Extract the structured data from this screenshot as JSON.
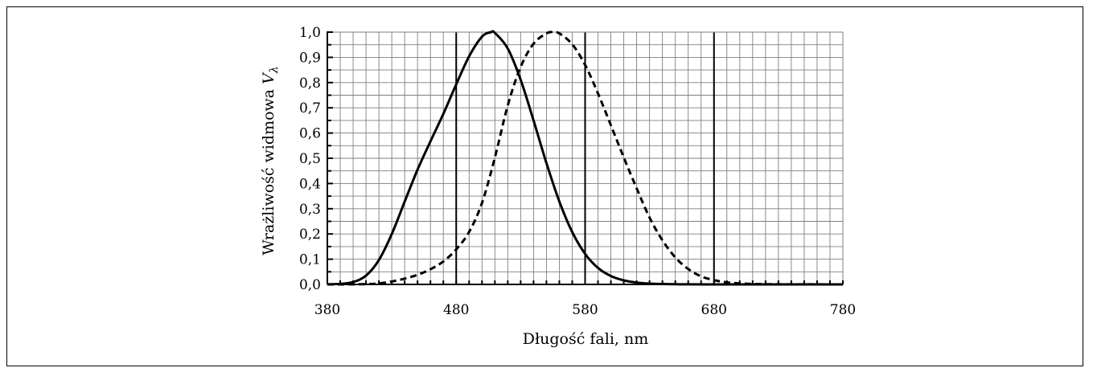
{
  "chart_data": {
    "type": "line",
    "xlabel": "Długość fali, nm",
    "ylabel_main": "Wrażliwość widmowa ",
    "ylabel_var": "V",
    "ylabel_sub": "λ",
    "xlim": [
      380,
      780
    ],
    "ylim": [
      0,
      1
    ],
    "x_ticks": [
      "380",
      "480",
      "580",
      "680",
      "780"
    ],
    "y_ticks": [
      "0,0",
      "0,1",
      "0,2",
      "0,3",
      "0,4",
      "0,5",
      "0,6",
      "0,7",
      "0,8",
      "0,9",
      "1,0"
    ],
    "minor_grid_x_step": 10,
    "minor_grid_y_step": 0.05,
    "major_vlines": [
      480,
      580,
      680
    ],
    "grid": true,
    "legend": "none",
    "series": [
      {
        "style": "solid",
        "x": [
          380,
          390,
          400,
          410,
          420,
          430,
          440,
          450,
          460,
          470,
          480,
          490,
          500,
          507,
          510,
          520,
          530,
          540,
          550,
          560,
          570,
          580,
          590,
          600,
          610,
          620,
          630,
          640,
          650,
          660,
          680,
          700,
          780
        ],
        "y": [
          0.0006,
          0.0022,
          0.0093,
          0.0348,
          0.0966,
          0.1998,
          0.3281,
          0.455,
          0.567,
          0.676,
          0.793,
          0.904,
          0.982,
          1.0,
          0.997,
          0.935,
          0.811,
          0.65,
          0.481,
          0.3288,
          0.2076,
          0.1212,
          0.0655,
          0.0332,
          0.0159,
          0.0074,
          0.0033,
          0.0015,
          0.0007,
          0.0003,
          0.0001,
          0.0,
          0.0
        ]
      },
      {
        "style": "dashed",
        "x": [
          380,
          390,
          400,
          410,
          420,
          430,
          440,
          450,
          460,
          470,
          480,
          490,
          500,
          510,
          520,
          530,
          540,
          550,
          555,
          560,
          570,
          580,
          590,
          600,
          610,
          620,
          630,
          640,
          650,
          660,
          670,
          680,
          690,
          700,
          720,
          780
        ],
        "y": [
          0.0,
          0.0001,
          0.0004,
          0.0012,
          0.004,
          0.0116,
          0.023,
          0.038,
          0.06,
          0.091,
          0.139,
          0.208,
          0.323,
          0.503,
          0.71,
          0.862,
          0.954,
          0.995,
          1.0,
          0.995,
          0.952,
          0.87,
          0.757,
          0.631,
          0.503,
          0.381,
          0.265,
          0.175,
          0.107,
          0.061,
          0.032,
          0.017,
          0.0082,
          0.0041,
          0.001,
          0.0
        ]
      }
    ]
  }
}
